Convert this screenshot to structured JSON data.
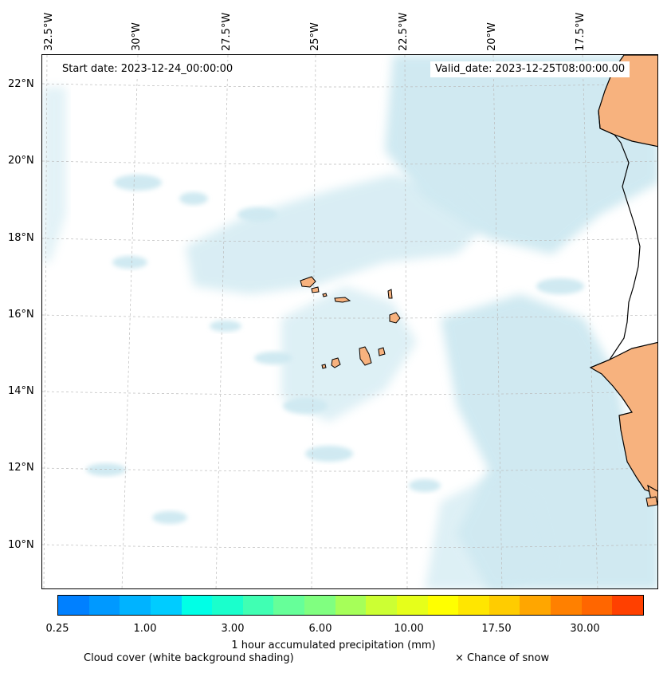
{
  "header": {
    "start_date": "Start date: 2023-12-24_00:00:00",
    "valid_date": "Valid_date: 2023-12-25T08:00:00.00"
  },
  "map": {
    "longitude_labels": [
      "32.5°W",
      "30°W",
      "27.5°W",
      "25°W",
      "22.5°W",
      "20°W",
      "17.5°W"
    ],
    "latitude_labels": [
      "22°N",
      "20°N",
      "18°N",
      "16°N",
      "14°N",
      "12°N",
      "10°N"
    ],
    "colors": {
      "cloud": "#a9d8e6",
      "land_heat": "#f7b27e",
      "coastline": "#000000",
      "gridline": "#bbbbbb"
    }
  },
  "legend": {
    "colorbar_colors": [
      "#0080ff",
      "#0099ff",
      "#00b3ff",
      "#00ccff",
      "#00ffe6",
      "#1affcc",
      "#40ffb3",
      "#66ff99",
      "#80ff80",
      "#a6ff59",
      "#ccff33",
      "#e6ff1a",
      "#ffff00",
      "#ffe600",
      "#ffcc00",
      "#ffa600",
      "#ff8000",
      "#ff6600",
      "#ff4000"
    ],
    "tick_labels": [
      "0.25",
      "1.00",
      "3.00",
      "6.00",
      "10.00",
      "17.50",
      "30.00"
    ],
    "title": "1 hour accumulated precipitation (mm)",
    "cloud_note": "Cloud cover (white background shading)",
    "snow_note": "× Chance of snow"
  }
}
